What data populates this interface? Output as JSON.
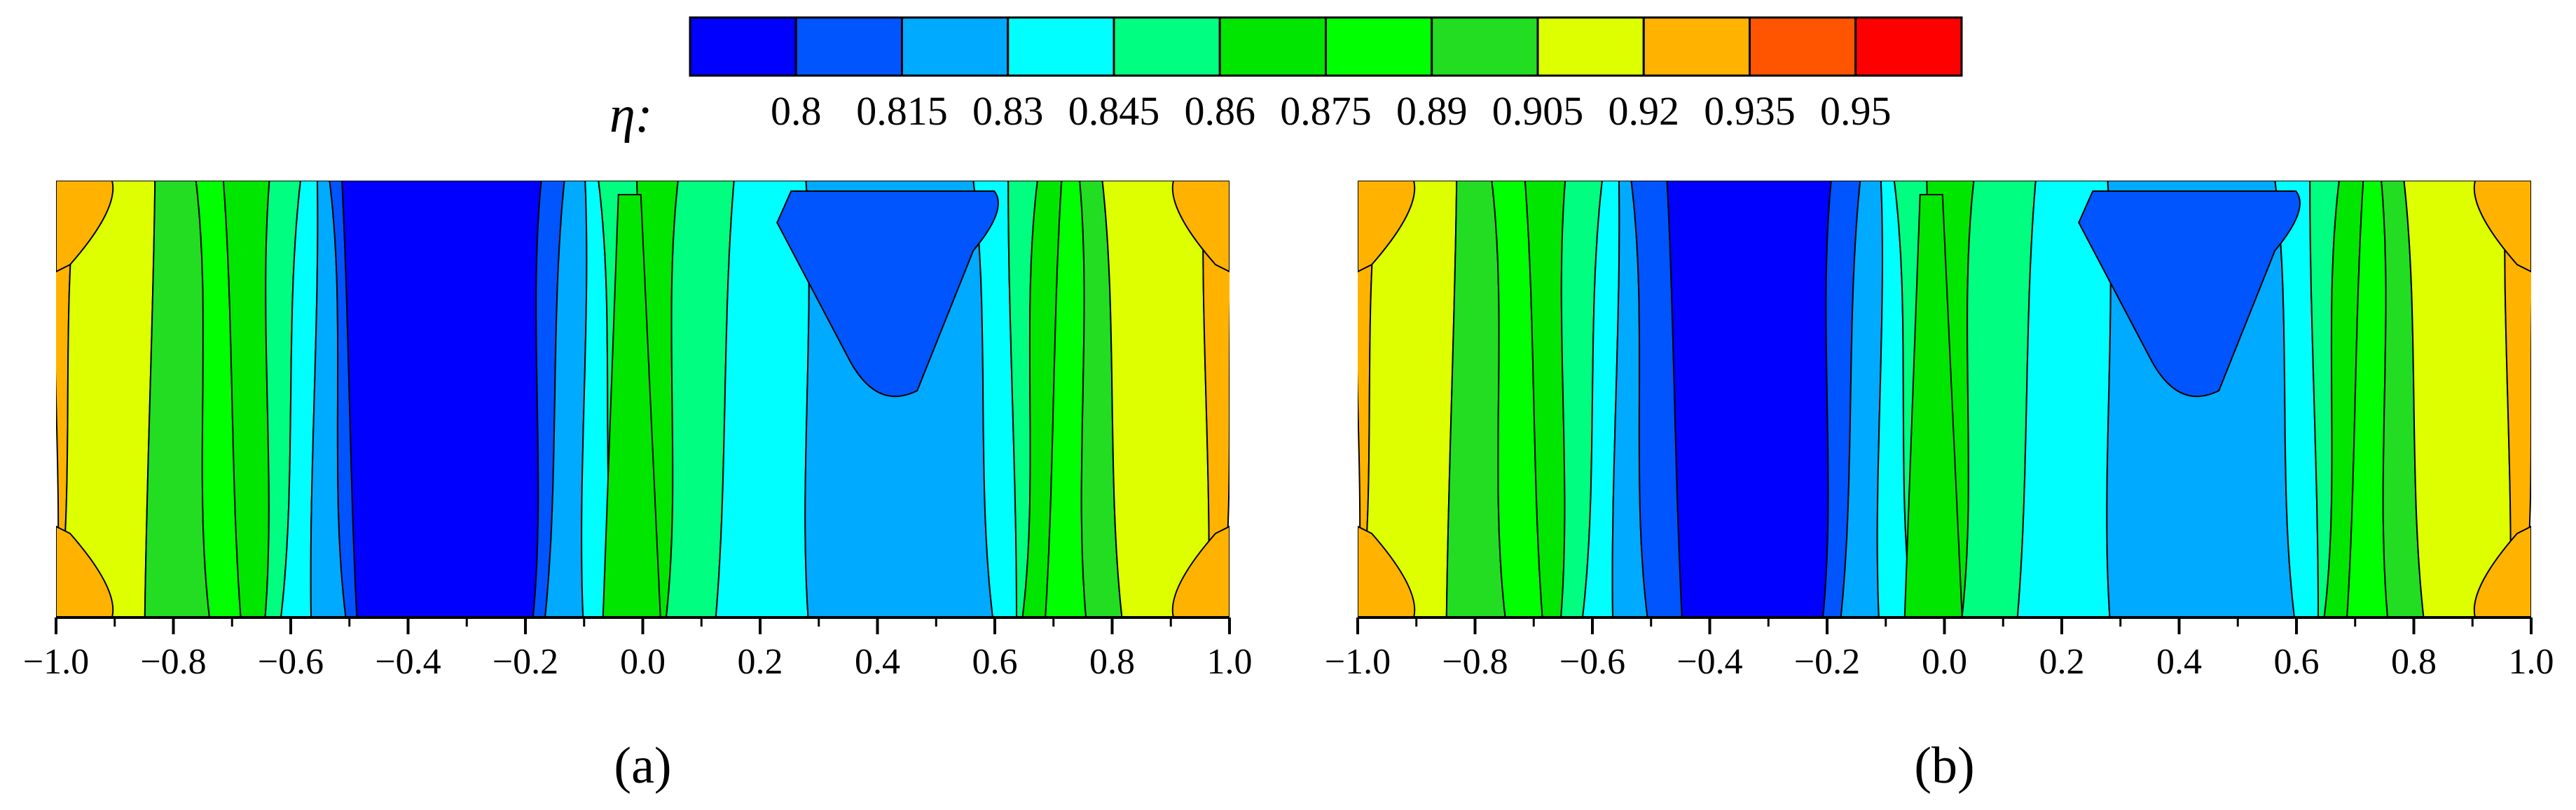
{
  "colorbar": {
    "symbol": "η:",
    "colors": [
      "#0000ff",
      "#0055ff",
      "#00aaff",
      "#00ffff",
      "#00ff80",
      "#00e600",
      "#00ff00",
      "#22dd22",
      "#ddff00",
      "#ffb300",
      "#ff5500",
      "#ff0000"
    ],
    "tick_labels": [
      "0.8",
      "0.815",
      "0.83",
      "0.845",
      "0.86",
      "0.875",
      "0.89",
      "0.905",
      "0.92",
      "0.935",
      "0.95"
    ]
  },
  "chart_data": [
    {
      "type": "heatmap",
      "panel_label": "(a)",
      "xlim": [
        -1.0,
        1.0
      ],
      "x_ticks": [
        "−1.0",
        "−0.8",
        "−0.6",
        "−0.4",
        "−0.2",
        "0.0",
        "0.2",
        "0.4",
        "0.6",
        "0.8",
        "1.0"
      ],
      "color_bands": [
        {
          "x_from": -1.0,
          "x_to": -0.98,
          "level": 9
        },
        {
          "x_from": -0.98,
          "x_to": -0.84,
          "level": 8
        },
        {
          "x_from": -0.84,
          "x_to": -0.75,
          "level": 7
        },
        {
          "x_from": -0.75,
          "x_to": -0.7,
          "level": 6
        },
        {
          "x_from": -0.7,
          "x_to": -0.64,
          "level": 5
        },
        {
          "x_from": -0.64,
          "x_to": -0.6,
          "level": 4
        },
        {
          "x_from": -0.6,
          "x_to": -0.56,
          "level": 3
        },
        {
          "x_from": -0.56,
          "x_to": -0.52,
          "level": 2
        },
        {
          "x_from": -0.52,
          "x_to": -0.5,
          "level": 1
        },
        {
          "x_from": -0.5,
          "x_to": -0.18,
          "level": 0
        },
        {
          "x_from": -0.18,
          "x_to": -0.15,
          "level": 1
        },
        {
          "x_from": -0.15,
          "x_to": -0.1,
          "level": 2
        },
        {
          "x_from": -0.1,
          "x_to": -0.06,
          "level": 3
        },
        {
          "x_from": -0.06,
          "x_to": 0.0,
          "level": 4
        },
        {
          "x_from": 0.0,
          "x_to": 0.05,
          "level": 5
        },
        {
          "x_from": 0.05,
          "x_to": 0.14,
          "level": 4
        },
        {
          "x_from": 0.14,
          "x_to": 0.28,
          "level": 3
        },
        {
          "x_from": 0.28,
          "x_to": 0.58,
          "level": 2
        },
        {
          "x_from": 0.58,
          "x_to": 0.63,
          "level": 3
        },
        {
          "x_from": 0.63,
          "x_to": 0.66,
          "level": 4
        },
        {
          "x_from": 0.66,
          "x_to": 0.7,
          "level": 5
        },
        {
          "x_from": 0.7,
          "x_to": 0.75,
          "level": 6
        },
        {
          "x_from": 0.75,
          "x_to": 0.8,
          "level": 7
        },
        {
          "x_from": 0.8,
          "x_to": 0.96,
          "level": 8
        },
        {
          "x_from": 0.96,
          "x_to": 1.0,
          "level": 9
        }
      ]
    },
    {
      "type": "heatmap",
      "panel_label": "(b)",
      "xlim": [
        -1.0,
        1.0
      ],
      "x_ticks": [
        "−1.0",
        "−0.8",
        "−0.6",
        "−0.4",
        "−0.2",
        "0.0",
        "0.2",
        "0.4",
        "0.6",
        "0.8",
        "1.0"
      ],
      "color_bands": [
        {
          "x_from": -1.0,
          "x_to": -0.98,
          "level": 9
        },
        {
          "x_from": -0.98,
          "x_to": -0.84,
          "level": 8
        },
        {
          "x_from": -0.84,
          "x_to": -0.76,
          "level": 7
        },
        {
          "x_from": -0.76,
          "x_to": -0.7,
          "level": 6
        },
        {
          "x_from": -0.7,
          "x_to": -0.65,
          "level": 5
        },
        {
          "x_from": -0.65,
          "x_to": -0.6,
          "level": 4
        },
        {
          "x_from": -0.6,
          "x_to": -0.56,
          "level": 3
        },
        {
          "x_from": -0.56,
          "x_to": -0.52,
          "level": 2
        },
        {
          "x_from": -0.52,
          "x_to": -0.46,
          "level": 1
        },
        {
          "x_from": -0.46,
          "x_to": -0.2,
          "level": 0
        },
        {
          "x_from": -0.2,
          "x_to": -0.16,
          "level": 1
        },
        {
          "x_from": -0.16,
          "x_to": -0.11,
          "level": 2
        },
        {
          "x_from": -0.11,
          "x_to": -0.07,
          "level": 3
        },
        {
          "x_from": -0.07,
          "x_to": -0.02,
          "level": 4
        },
        {
          "x_from": -0.02,
          "x_to": 0.04,
          "level": 5
        },
        {
          "x_from": 0.04,
          "x_to": 0.14,
          "level": 4
        },
        {
          "x_from": 0.14,
          "x_to": 0.28,
          "level": 3
        },
        {
          "x_from": 0.28,
          "x_to": 0.58,
          "level": 2
        },
        {
          "x_from": 0.58,
          "x_to": 0.63,
          "level": 3
        },
        {
          "x_from": 0.63,
          "x_to": 0.66,
          "level": 4
        },
        {
          "x_from": 0.66,
          "x_to": 0.7,
          "level": 5
        },
        {
          "x_from": 0.7,
          "x_to": 0.75,
          "level": 6
        },
        {
          "x_from": 0.75,
          "x_to": 0.8,
          "level": 7
        },
        {
          "x_from": 0.8,
          "x_to": 0.96,
          "level": 8
        },
        {
          "x_from": 0.96,
          "x_to": 1.0,
          "level": 9
        }
      ]
    }
  ]
}
